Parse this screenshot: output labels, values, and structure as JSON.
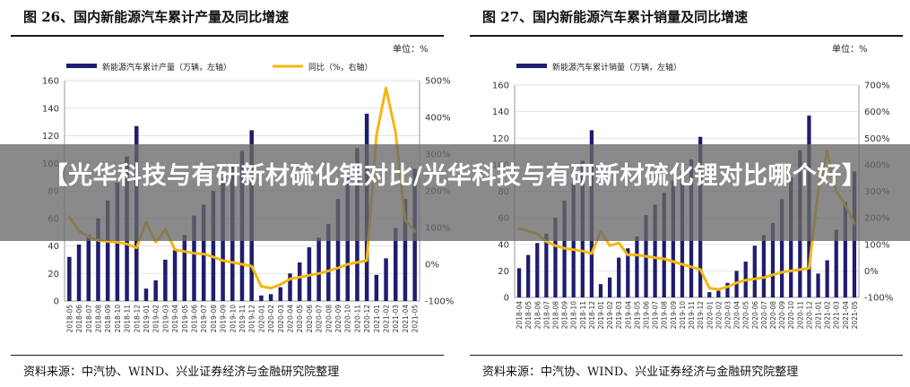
{
  "banner": {
    "text": "【光华科技与有研新材硫化锂对比/光华科技与有研新材硫化锂对比哪个好】"
  },
  "colors": {
    "bar": "#1f1d6e",
    "line": "#f2b80f",
    "banner": "#6b6b6b"
  },
  "chart_data": [
    {
      "type": "bar",
      "title": "图 26、国内新能源汽车累计产量及同比增速",
      "unit_label": "单位：%",
      "source": "资料来源：中汽协、WIND、兴业证券经济与金融研究院整理",
      "categories": [
        "2018-05",
        "2018-06",
        "2018-07",
        "2018-08",
        "2018-09",
        "2018-10",
        "2018-11",
        "2018-12",
        "2019-01",
        "2019-02",
        "2019-03",
        "2019-04",
        "2019-05",
        "2019-06",
        "2019-07",
        "2019-08",
        "2019-09",
        "2019-10",
        "2019-11",
        "2019-12",
        "2020-01",
        "2020-02",
        "2020-03",
        "2020-04",
        "2020-05",
        "2020-06",
        "2020-07",
        "2020-08",
        "2020-09",
        "2020-10",
        "2020-11",
        "2020-12",
        "2021-01",
        "2021-02",
        "2021-03",
        "2021-04",
        "2021-05"
      ],
      "y_left": {
        "min": 0,
        "max": 160,
        "ticks": [
          "0",
          "20",
          "40",
          "60",
          "80",
          "100",
          "120",
          "140",
          "160"
        ]
      },
      "y_right": {
        "min": -100,
        "max": 500,
        "ticks": [
          "-100%",
          "0%",
          "100%",
          "200%",
          "300%",
          "400%",
          "500%"
        ]
      },
      "legend_position": "top",
      "series": [
        {
          "name": "新能源汽车累计产量（万辆，左轴）",
          "type": "bar",
          "axis": "left",
          "values": [
            32,
            41,
            48,
            60,
            73,
            86,
            105,
            127,
            9,
            15,
            30,
            37,
            48,
            62,
            70,
            80,
            89,
            99,
            109,
            124,
            4,
            5,
            10,
            20,
            28,
            39,
            46,
            56,
            74,
            90,
            111,
            136,
            19,
            31,
            53,
            74,
            96
          ]
        },
        {
          "name": "同比（%，右轴）",
          "type": "line",
          "axis": "right",
          "values": [
            130,
            90,
            75,
            65,
            62,
            60,
            55,
            45,
            115,
            60,
            95,
            40,
            35,
            30,
            28,
            20,
            10,
            5,
            0,
            -5,
            -60,
            -65,
            -55,
            -40,
            -35,
            -30,
            -25,
            -18,
            -10,
            0,
            5,
            10,
            350,
            480,
            360,
            120,
            90
          ]
        }
      ]
    },
    {
      "type": "bar",
      "title": "图 27、国内新能源汽车累计销量及同比增速",
      "unit_label": "单位：%",
      "source": "资料来源：中汽协、WIND、兴业证券经济与金融研究院整理",
      "categories": [
        "2018-04",
        "2018-05",
        "2018-06",
        "2018-07",
        "2018-08",
        "2018-09",
        "2018-10",
        "2018-11",
        "2018-12",
        "2019-01",
        "2019-02",
        "2019-03",
        "2019-04",
        "2019-05",
        "2019-06",
        "2019-07",
        "2019-08",
        "2019-09",
        "2019-10",
        "2019-11",
        "2019-12",
        "2020-01",
        "2020-02",
        "2020-03",
        "2020-04",
        "2020-05",
        "2020-06",
        "2020-07",
        "2020-08",
        "2020-09",
        "2020-10",
        "2020-11",
        "2020-12",
        "2021-01",
        "2021-02",
        "2021-03",
        "2021-04",
        "2021-05"
      ],
      "y_left": {
        "min": 0,
        "max": 160,
        "ticks": [
          "0",
          "20",
          "40",
          "60",
          "80",
          "100",
          "120",
          "140",
          "160"
        ]
      },
      "y_right": {
        "min": -100,
        "max": 700,
        "ticks": [
          "-100%",
          "0%",
          "100%",
          "200%",
          "300%",
          "400%",
          "500%",
          "600%",
          "700%"
        ]
      },
      "legend_position": "top",
      "series": [
        {
          "name": "新能源汽车累计销量（万辆，左轴）",
          "type": "bar",
          "axis": "left",
          "values": [
            22,
            32,
            41,
            48,
            60,
            73,
            86,
            103,
            126,
            10,
            15,
            30,
            37,
            46,
            62,
            70,
            79,
            88,
            95,
            104,
            121,
            4,
            5,
            11,
            20,
            27,
            39,
            47,
            56,
            74,
            91,
            111,
            137,
            18,
            28,
            51,
            72,
            95
          ]
        },
        {
          "name": "同比（%，右轴）",
          "type": "line",
          "axis": "right",
          "values": [
            160,
            150,
            140,
            110,
            95,
            85,
            80,
            75,
            65,
            150,
            95,
            105,
            60,
            60,
            55,
            50,
            45,
            35,
            25,
            15,
            5,
            -65,
            -70,
            -60,
            -45,
            -35,
            -30,
            -25,
            -15,
            -5,
            0,
            5,
            10,
            300,
            450,
            300,
            250,
            180
          ]
        }
      ]
    }
  ]
}
